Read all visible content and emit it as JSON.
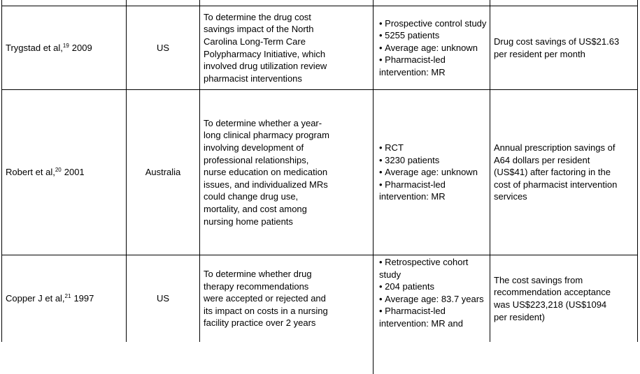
{
  "table": {
    "rows": [
      {
        "author": {
          "name": "Trygstad et al,",
          "ref": "19",
          "year": "2009"
        },
        "country": "US",
        "objective": [
          "To determine the drug cost",
          "savings impact of the North",
          "Carolina Long-Term Care",
          "Polypharmacy Initiative, which",
          "involved drug utilization review",
          "pharmacist interventions"
        ],
        "design": [
          "Prospective control study",
          "5255 patients",
          "Average age: unknown",
          "Pharmacist-led intervention: MR"
        ],
        "outcome": [
          "Drug cost savings of US$21.63",
          "per resident per month"
        ]
      },
      {
        "author": {
          "name": "Robert et al,",
          "ref": "20",
          "year": "2001"
        },
        "country": "Australia",
        "objective": [
          "To determine whether a year-",
          "long clinical pharmacy program",
          "involving development of",
          "professional relationships,",
          "nurse education on medication",
          "issues, and individualized MRs",
          "could change drug use,",
          "mortality, and cost among",
          "nursing home patients"
        ],
        "design": [
          "RCT",
          "3230 patients",
          "Average age: unknown",
          "Pharmacist-led intervention: MR"
        ],
        "outcome": [
          "Annual prescription savings of",
          "A64 dollars per resident",
          "(US$41) after factoring in the",
          "cost of pharmacist intervention",
          "services"
        ]
      },
      {
        "author": {
          "name": "Copper J et al,",
          "ref": "21",
          "year": "1997"
        },
        "country": "US",
        "objective": [
          "To determine whether drug",
          "therapy recommendations",
          "were accepted or rejected and",
          "its impact on costs in a nursing",
          "facility practice over 2 years"
        ],
        "design": [
          "Retrospective cohort study",
          "204 patients",
          "Average age: 83.7 years",
          "Pharmacist-led intervention: MR and"
        ],
        "outcome": [
          "The cost savings from",
          "recommendation acceptance",
          "was US$223,218 (US$1094",
          "per resident)"
        ]
      }
    ]
  }
}
